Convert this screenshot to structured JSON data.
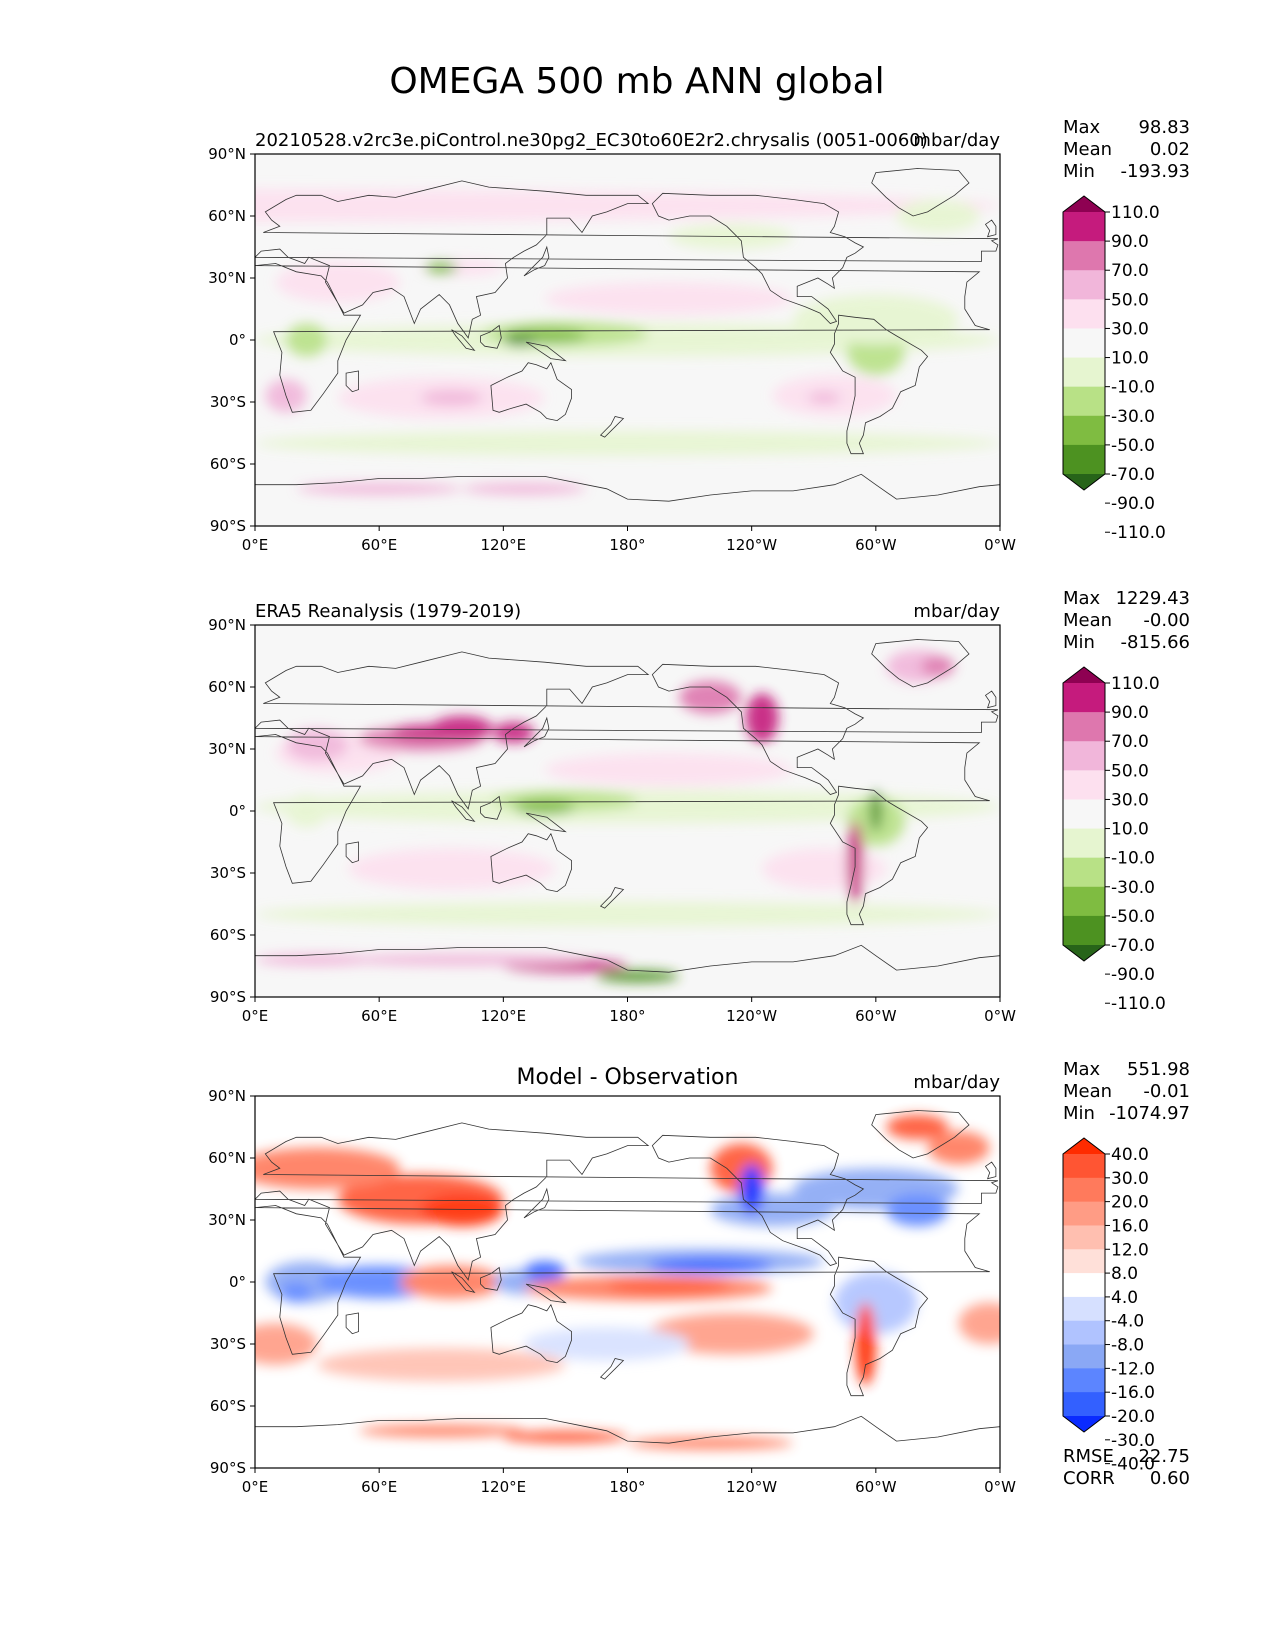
{
  "title": "OMEGA 500 mb ANN global",
  "colors": {
    "land_outline": "#333333",
    "omega_scale": [
      "#276419",
      "#4d9221",
      "#7fbc41",
      "#b8e186",
      "#e6f5d0",
      "#f7f7f7",
      "#fde0ef",
      "#f1b6da",
      "#de77ae",
      "#c51b7d",
      "#8e0152"
    ],
    "diff_scale": [
      "#0a2bff",
      "#3360ff",
      "#5c85ff",
      "#8aa8f5",
      "#b0c3ff",
      "#d6e0ff",
      "#ffffff",
      "#ffe0d9",
      "#ffbfb0",
      "#ff9c85",
      "#ff7a5c",
      "#ff5533",
      "#ff2b00"
    ]
  },
  "lat_ticks": [
    "90°N",
    "60°N",
    "30°N",
    "0°",
    "30°S",
    "60°S",
    "90°S"
  ],
  "lon_ticks": [
    "0°E",
    "60°E",
    "120°E",
    "180°",
    "120°W",
    "60°W",
    "0°W"
  ],
  "panels": [
    {
      "id": "model",
      "left_title": "20210528.v2rc3e.piControl.ne30pg2_EC30to60E2r2.chrysalis (0051-0060)",
      "center_title": "",
      "units": "mbar/day",
      "stats": [
        {
          "label": "Max",
          "value": "98.83"
        },
        {
          "label": "Mean",
          "value": "0.02"
        },
        {
          "label": "Min",
          "value": "-193.93"
        }
      ],
      "colorbar_labels": [
        "110.0",
        "90.0",
        "70.0",
        "50.0",
        "30.0",
        "10.0",
        "-10.0",
        "-30.0",
        "-50.0",
        "-70.0",
        "-90.0",
        "-110.0"
      ],
      "scale": "omega",
      "extra_stats": []
    },
    {
      "id": "obs",
      "left_title": "ERA5 Reanalysis (1979-2019)",
      "center_title": "",
      "units": "mbar/day",
      "stats": [
        {
          "label": "Max",
          "value": "1229.43"
        },
        {
          "label": "Mean",
          "value": "-0.00"
        },
        {
          "label": "Min",
          "value": "-815.66"
        }
      ],
      "colorbar_labels": [
        "110.0",
        "90.0",
        "70.0",
        "50.0",
        "30.0",
        "10.0",
        "-10.0",
        "-30.0",
        "-50.0",
        "-70.0",
        "-90.0",
        "-110.0"
      ],
      "scale": "omega",
      "extra_stats": []
    },
    {
      "id": "diff",
      "left_title": "",
      "center_title": "Model - Observation",
      "units": "mbar/day",
      "stats": [
        {
          "label": "Max",
          "value": "551.98"
        },
        {
          "label": "Mean",
          "value": "-0.01"
        },
        {
          "label": "Min",
          "value": "-1074.97"
        }
      ],
      "colorbar_labels": [
        "40.0",
        "30.0",
        "20.0",
        "16.0",
        "12.0",
        "8.0",
        "4.0",
        "-4.0",
        "-8.0",
        "-12.0",
        "-16.0",
        "-20.0",
        "-30.0",
        "-40.0"
      ],
      "scale": "diff",
      "extra_stats": [
        {
          "label": "RMSE",
          "value": "22.75"
        },
        {
          "label": "CORR",
          "value": "0.60"
        }
      ]
    }
  ],
  "chart_data": [
    {
      "type": "heatmap",
      "title": "20210528.v2rc3e.piControl.ne30pg2_EC30to60E2r2.chrysalis (0051-0060)",
      "units": "mbar/day",
      "x_ticks": [
        "0°E",
        "60°E",
        "120°E",
        "180°",
        "120°W",
        "60°W",
        "0°W"
      ],
      "y_ticks": [
        "90°N",
        "60°N",
        "30°N",
        "0°",
        "30°S",
        "60°S",
        "90°S"
      ],
      "levels": [
        -110,
        -90,
        -70,
        -50,
        -30,
        -10,
        10,
        30,
        50,
        70,
        90,
        110
      ],
      "max": 98.83,
      "mean": 0.02,
      "min": -193.93
    },
    {
      "type": "heatmap",
      "title": "ERA5 Reanalysis (1979-2019)",
      "units": "mbar/day",
      "x_ticks": [
        "0°E",
        "60°E",
        "120°E",
        "180°",
        "120°W",
        "60°W",
        "0°W"
      ],
      "y_ticks": [
        "90°N",
        "60°N",
        "30°N",
        "0°",
        "30°S",
        "60°S",
        "90°S"
      ],
      "levels": [
        -110,
        -90,
        -70,
        -50,
        -30,
        -10,
        10,
        30,
        50,
        70,
        90,
        110
      ],
      "max": 1229.43,
      "mean": -0.0,
      "min": -815.66
    },
    {
      "type": "heatmap",
      "title": "Model - Observation",
      "units": "mbar/day",
      "x_ticks": [
        "0°E",
        "60°E",
        "120°E",
        "180°",
        "120°W",
        "60°W",
        "0°W"
      ],
      "y_ticks": [
        "90°N",
        "60°N",
        "30°N",
        "0°",
        "30°S",
        "60°S",
        "90°S"
      ],
      "levels": [
        -40,
        -30,
        -20,
        -16,
        -12,
        -8,
        -4,
        4,
        8,
        12,
        16,
        20,
        30,
        40
      ],
      "max": 551.98,
      "mean": -0.01,
      "min": -1074.97,
      "rmse": 22.75,
      "corr": 0.6
    }
  ]
}
